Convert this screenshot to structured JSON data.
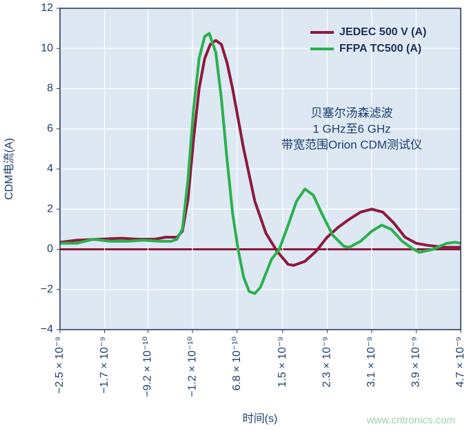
{
  "chart_data": {
    "type": "line",
    "x_label": "时间(s)",
    "y_label": "CDM电流(A)",
    "annotation": [
      "贝塞尔汤森滤波",
      "1 GHz至6 GHz",
      "带宽范围Orion CDM测试仪"
    ],
    "watermark": "www.cntronics.com",
    "xlim": [
      -2.5e-09,
      4.7e-09
    ],
    "xticks": [
      {
        "value": -2.5e-09,
        "label": "−2.5 × 10⁻⁹"
      },
      {
        "value": -1.7e-09,
        "label": "−1.7 × 10⁻⁹"
      },
      {
        "value": -9.2e-10,
        "label": "−9.2 × 10⁻¹⁰"
      },
      {
        "value": -1.2e-10,
        "label": "−1.2 × 10⁻¹⁰"
      },
      {
        "value": 6.8e-10,
        "label": "6.8 × 10⁻¹⁰"
      },
      {
        "value": 1.5e-09,
        "label": "1.5 × 10⁻⁹"
      },
      {
        "value": 2.3e-09,
        "label": "2.3 × 10⁻⁹"
      },
      {
        "value": 3.1e-09,
        "label": "3.1 × 10⁻⁹"
      },
      {
        "value": 3.9e-09,
        "label": "3.9 × 10⁻⁹"
      },
      {
        "value": 4.7e-09,
        "label": "4.7 × 10⁻⁹"
      }
    ],
    "ylim": [
      -4,
      12
    ],
    "yticks": [
      {
        "value": -4,
        "label": "−4"
      },
      {
        "value": -2,
        "label": "−2"
      },
      0,
      2,
      4,
      6,
      8,
      10,
      12
    ],
    "grid": true,
    "zero_line": true,
    "legend_position": "upper right",
    "series": [
      {
        "name": "JEDEC 500 V (A)",
        "color": "#8c1a3c",
        "x": [
          -2.5e-09,
          -2.2e-09,
          -1.8e-09,
          -1.4e-09,
          -1.1e-09,
          -8e-10,
          -6e-10,
          -4e-10,
          -3e-10,
          -2e-10,
          -1e-10,
          0,
          1e-10,
          2e-10,
          3e-10,
          4e-10,
          5e-10,
          6e-10,
          8e-10,
          1e-09,
          1.2e-09,
          1.4e-09,
          1.6e-09,
          1.7e-09,
          1.9e-09,
          2.1e-09,
          2.3e-09,
          2.5e-09,
          2.7e-09,
          2.9e-09,
          3.1e-09,
          3.3e-09,
          3.5e-09,
          3.7e-09,
          3.9e-09,
          4.1e-09,
          4.4e-09,
          4.7e-09
        ],
        "values": [
          0.35,
          0.45,
          0.5,
          0.55,
          0.5,
          0.5,
          0.6,
          0.6,
          0.9,
          2.5,
          5.5,
          8.0,
          9.5,
          10.2,
          10.4,
          10.2,
          9.3,
          8.0,
          5.0,
          2.4,
          0.8,
          -0.1,
          -0.75,
          -0.8,
          -0.6,
          -0.1,
          0.6,
          1.1,
          1.5,
          1.85,
          2.0,
          1.85,
          1.3,
          0.6,
          0.3,
          0.2,
          0.1,
          0.1
        ]
      },
      {
        "name": "FFPA TC500 (A)",
        "color": "#2bb04f",
        "x": [
          -2.5e-09,
          -2.2e-09,
          -1.9e-09,
          -1.6e-09,
          -1.3e-09,
          -1e-09,
          -7e-10,
          -5e-10,
          -4e-10,
          -3e-10,
          -2e-10,
          -1e-10,
          0,
          1e-10,
          1.8e-10,
          3e-10,
          4e-10,
          5e-10,
          6e-10,
          7e-10,
          8e-10,
          9e-10,
          1e-09,
          1.1e-09,
          1.2e-09,
          1.3e-09,
          1.44e-09,
          1.6e-09,
          1.75e-09,
          1.9e-09,
          2.05e-09,
          2.2e-09,
          2.4e-09,
          2.6e-09,
          2.7e-09,
          2.9e-09,
          3.1e-09,
          3.28e-09,
          3.45e-09,
          3.65e-09,
          3.85e-09,
          3.96e-09,
          4.2e-09,
          4.45e-09,
          4.6e-09,
          4.7e-09
        ],
        "values": [
          0.3,
          0.3,
          0.5,
          0.4,
          0.4,
          0.45,
          0.4,
          0.4,
          0.5,
          1.0,
          3.5,
          7.0,
          9.5,
          10.6,
          10.75,
          9.8,
          7.5,
          4.5,
          1.8,
          0.0,
          -1.4,
          -2.1,
          -2.2,
          -1.9,
          -1.2,
          -0.5,
          0.0,
          1.2,
          2.4,
          3.0,
          2.7,
          1.8,
          0.7,
          0.15,
          0.1,
          0.4,
          0.9,
          1.2,
          1.0,
          0.4,
          0.0,
          -0.15,
          0.0,
          0.3,
          0.35,
          0.3
        ]
      }
    ]
  }
}
